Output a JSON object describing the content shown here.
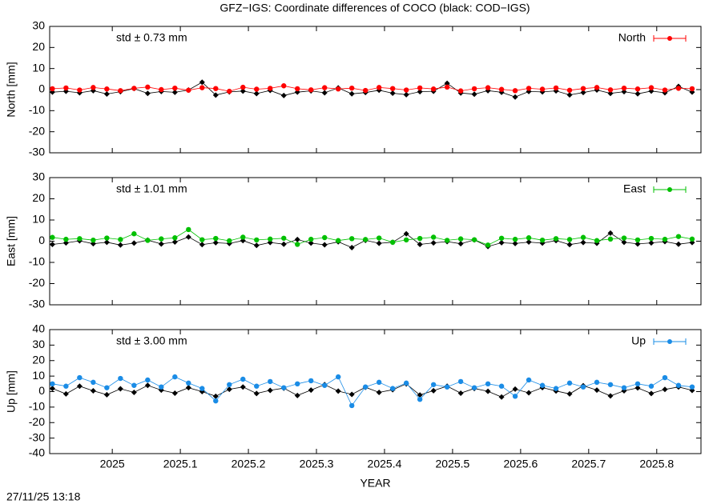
{
  "title": "GFZ−IGS: Coordinate differences of COCO (black: COD−IGS)",
  "timestamp": "27/11/25 13:18",
  "chart_data": [
    {
      "type": "line",
      "ylabel": "North [mm]",
      "annotation": "std ± 0.73 mm",
      "legend": "top-right",
      "xlim": [
        2024.908,
        2025.865
      ],
      "ylim": [
        -30,
        30
      ],
      "yticks": [
        -30,
        -20,
        -10,
        0,
        10,
        20,
        30
      ],
      "x": [
        2024.912,
        2024.932,
        2024.952,
        2024.972,
        2024.992,
        2025.012,
        2025.032,
        2025.052,
        2025.072,
        2025.092,
        2025.112,
        2025.132,
        2025.152,
        2025.172,
        2025.192,
        2025.212,
        2025.232,
        2025.252,
        2025.272,
        2025.292,
        2025.312,
        2025.332,
        2025.352,
        2025.372,
        2025.392,
        2025.412,
        2025.432,
        2025.452,
        2025.472,
        2025.492,
        2025.512,
        2025.532,
        2025.552,
        2025.572,
        2025.592,
        2025.612,
        2025.632,
        2025.652,
        2025.672,
        2025.692,
        2025.712,
        2025.732,
        2025.752,
        2025.772,
        2025.792,
        2025.812,
        2025.832,
        2025.852
      ],
      "series": [
        {
          "color": "#000000",
          "marker": "diamond",
          "values": [
            -1.2,
            -0.8,
            -1.5,
            -0.5,
            -2.1,
            -1.0,
            0.5,
            -1.8,
            -0.9,
            -1.3,
            -0.2,
            3.5,
            -2.6,
            -1.1,
            -0.7,
            -1.9,
            -0.4,
            -2.8,
            -1.2,
            -0.6,
            -1.5,
            0.8,
            -2.0,
            -1.4,
            -0.3,
            -1.7,
            -2.4,
            -1.0,
            -0.8,
            3.0,
            -1.6,
            -2.2,
            -0.5,
            -1.3,
            -3.5,
            -0.9,
            -1.1,
            -0.6,
            -2.5,
            -1.4,
            -0.2,
            -1.8,
            -1.0,
            -2.0,
            -0.7,
            -1.5,
            1.5,
            -1.2
          ]
        },
        {
          "name": "North",
          "color": "#ff0000",
          "marker": "circle",
          "values": [
            0.4,
            0.8,
            -0.2,
            1.0,
            0.3,
            -0.5,
            0.6,
            1.2,
            0.0,
            0.7,
            -0.3,
            0.9,
            0.5,
            -0.8,
            1.1,
            0.2,
            0.6,
            1.8,
            0.4,
            -0.1,
            0.9,
            0.3,
            0.7,
            -0.4,
            1.0,
            0.5,
            -0.2,
            0.8,
            0.3,
            1.2,
            -0.6,
            0.4,
            0.9,
            0.1,
            -0.5,
            0.6,
            0.2,
            0.8,
            -0.3,
            0.5,
            1.0,
            -0.1,
            0.7,
            0.3,
            0.9,
            -0.2,
            0.6,
            0.4
          ]
        }
      ]
    },
    {
      "type": "line",
      "ylabel": "East [mm]",
      "annotation": "std ± 1.01 mm",
      "legend": "top-right",
      "xlim": [
        2024.908,
        2025.865
      ],
      "ylim": [
        -30,
        30
      ],
      "yticks": [
        -30,
        -20,
        -10,
        0,
        10,
        20,
        30
      ],
      "x": [
        2024.912,
        2024.932,
        2024.952,
        2024.972,
        2024.992,
        2025.012,
        2025.032,
        2025.052,
        2025.072,
        2025.092,
        2025.112,
        2025.132,
        2025.152,
        2025.172,
        2025.192,
        2025.212,
        2025.232,
        2025.252,
        2025.272,
        2025.292,
        2025.312,
        2025.332,
        2025.352,
        2025.372,
        2025.392,
        2025.412,
        2025.432,
        2025.452,
        2025.472,
        2025.492,
        2025.512,
        2025.532,
        2025.552,
        2025.572,
        2025.592,
        2025.612,
        2025.632,
        2025.652,
        2025.672,
        2025.692,
        2025.712,
        2025.732,
        2025.752,
        2025.772,
        2025.792,
        2025.812,
        2025.832,
        2025.852
      ],
      "series": [
        {
          "color": "#000000",
          "marker": "diamond",
          "values": [
            -1.5,
            -0.8,
            0.2,
            -1.2,
            -0.5,
            -1.8,
            -0.9,
            0.5,
            -1.3,
            -0.4,
            2.0,
            -1.6,
            -0.7,
            -1.1,
            0.3,
            -2.0,
            -0.6,
            -1.4,
            0.8,
            -0.9,
            -1.7,
            -0.3,
            -3.0,
            0.4,
            -1.0,
            -0.5,
            3.5,
            -1.5,
            -0.8,
            -0.2,
            -1.2,
            0.6,
            -2.5,
            -0.7,
            -1.1,
            -0.4,
            -0.9,
            0.3,
            -1.6,
            -0.6,
            -1.0,
            3.8,
            -0.5,
            -1.3,
            -0.8,
            -0.2,
            -1.4,
            -0.6
          ]
        },
        {
          "name": "East",
          "color": "#00c000",
          "marker": "circle",
          "values": [
            1.8,
            0.9,
            1.2,
            0.5,
            1.5,
            0.8,
            3.5,
            0.4,
            1.1,
            1.6,
            5.5,
            0.7,
            1.3,
            0.2,
            1.9,
            0.6,
            1.0,
            1.4,
            -1.5,
            0.9,
            1.7,
            0.3,
            1.2,
            0.8,
            1.5,
            -0.5,
            0.6,
            1.3,
            1.9,
            0.4,
            1.1,
            0.7,
            -1.8,
            1.4,
            0.9,
            1.6,
            0.5,
            1.2,
            0.8,
            1.8,
            0.3,
            1.0,
            1.5,
            0.6,
            1.3,
            0.9,
            2.2,
            1.0
          ]
        }
      ]
    },
    {
      "type": "line",
      "ylabel": "Up [mm]",
      "xlabel": "YEAR",
      "annotation": "std ± 3.00 mm",
      "legend": "top-right",
      "xlim": [
        2024.908,
        2025.865
      ],
      "ylim": [
        -40,
        40
      ],
      "yticks": [
        -40,
        -30,
        -20,
        -10,
        0,
        10,
        20,
        30,
        40
      ],
      "xticks": [
        2025,
        2025.1,
        2025.2,
        2025.3,
        2025.4,
        2025.5,
        2025.6,
        2025.7,
        2025.8
      ],
      "x": [
        2024.912,
        2024.932,
        2024.952,
        2024.972,
        2024.992,
        2025.012,
        2025.032,
        2025.052,
        2025.072,
        2025.092,
        2025.112,
        2025.132,
        2025.152,
        2025.172,
        2025.192,
        2025.212,
        2025.232,
        2025.252,
        2025.272,
        2025.292,
        2025.312,
        2025.332,
        2025.352,
        2025.372,
        2025.392,
        2025.412,
        2025.432,
        2025.452,
        2025.472,
        2025.492,
        2025.512,
        2025.532,
        2025.552,
        2025.572,
        2025.592,
        2025.612,
        2025.632,
        2025.652,
        2025.672,
        2025.692,
        2025.712,
        2025.732,
        2025.752,
        2025.772,
        2025.792,
        2025.812,
        2025.832,
        2025.852
      ],
      "series": [
        {
          "color": "#000000",
          "marker": "diamond",
          "values": [
            2.0,
            -1.5,
            3.5,
            0.5,
            -2.0,
            1.8,
            -0.5,
            4.0,
            1.0,
            -1.0,
            2.5,
            0.0,
            -3.0,
            1.5,
            3.0,
            -1.2,
            0.8,
            2.2,
            -2.5,
            1.0,
            4.5,
            0.3,
            -1.8,
            2.8,
            -0.5,
            1.2,
            5.0,
            -2.2,
            0.6,
            3.5,
            -1.0,
            2.0,
            0.2,
            -3.5,
            1.6,
            -0.8,
            2.6,
            0.4,
            -1.5,
            3.8,
            1.0,
            -2.8,
            0.5,
            2.4,
            -1.2,
            1.4,
            3.0,
            0.8
          ]
        },
        {
          "name": "Up",
          "color": "#1a8ce6",
          "marker": "circle",
          "values": [
            5.0,
            3.5,
            9.0,
            6.0,
            2.5,
            8.5,
            4.0,
            7.5,
            3.0,
            9.5,
            5.5,
            2.0,
            -6.0,
            4.5,
            8.0,
            3.5,
            6.5,
            2.5,
            5.0,
            7.0,
            4.0,
            9.5,
            -9.0,
            3.0,
            6.0,
            2.0,
            5.5,
            -5.0,
            4.5,
            3.0,
            6.5,
            2.5,
            5.0,
            3.5,
            -3.0,
            7.5,
            4.0,
            2.0,
            5.5,
            3.0,
            6.0,
            4.5,
            2.5,
            5.0,
            3.5,
            9.0,
            4.0,
            3.0
          ]
        }
      ]
    }
  ]
}
